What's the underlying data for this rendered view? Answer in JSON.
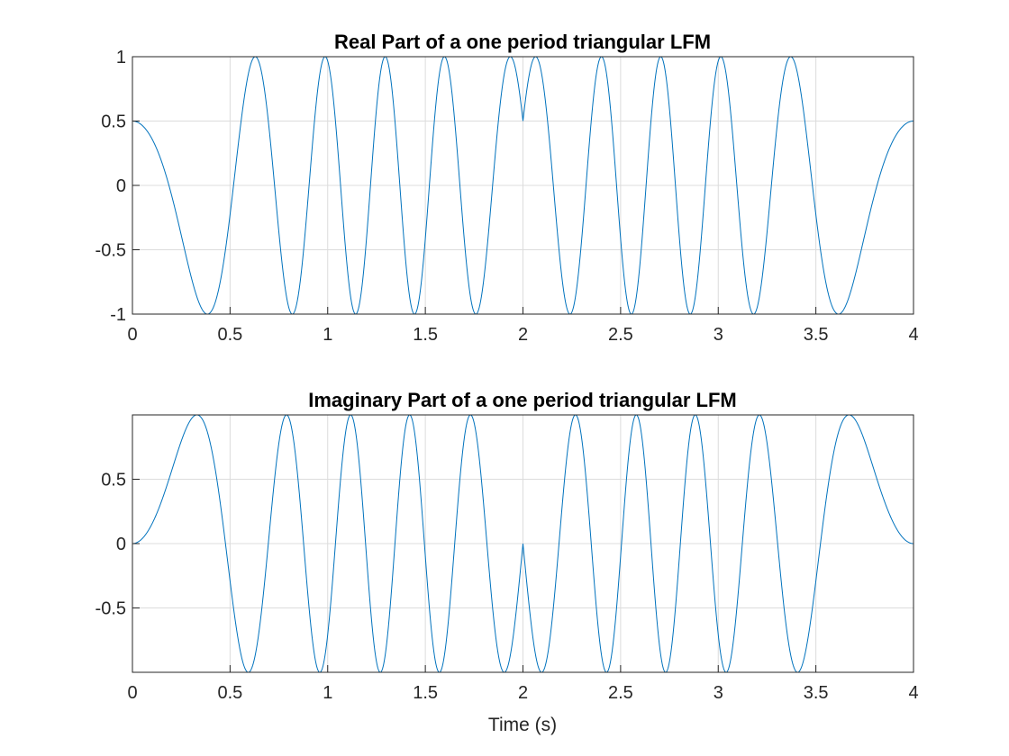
{
  "chart_data": [
    {
      "type": "line",
      "title": "Real Part of a one period triangular LFM",
      "xlabel": "",
      "ylabel": "",
      "xlim": [
        0,
        4
      ],
      "ylim": [
        -1,
        1
      ],
      "xticks": [
        0,
        0.5,
        1,
        1.5,
        2,
        2.5,
        3,
        3.5,
        4
      ],
      "xtick_labels": [
        "0",
        "0.5",
        "1",
        "1.5",
        "2",
        "2.5",
        "3",
        "3.5",
        "4"
      ],
      "yticks": [
        -1,
        -0.5,
        0,
        0.5,
        1
      ],
      "ytick_labels": [
        "-1",
        "-0.5",
        "0",
        "0.5",
        "1"
      ],
      "grid": true,
      "series": [
        {
          "part": "real",
          "function": "cos(2*pi*(2.5*t^2 - 0.625*t^3) + 1.047) for t in [0,2], mirrored for t in [2,4]",
          "x_range": [
            0,
            4
          ],
          "start_value": 0.5,
          "color": "#0072bd"
        }
      ]
    },
    {
      "type": "line",
      "title": "Imaginary Part of a one period triangular LFM",
      "xlabel": "Time (s)",
      "ylabel": "",
      "xlim": [
        0,
        4
      ],
      "ylim": [
        -1,
        1
      ],
      "xticks": [
        0,
        0.5,
        1,
        1.5,
        2,
        2.5,
        3,
        3.5,
        4
      ],
      "xtick_labels": [
        "0",
        "0.5",
        "1",
        "1.5",
        "2",
        "2.5",
        "3",
        "3.5",
        "4"
      ],
      "yticks": [
        -0.5,
        0,
        0.5
      ],
      "ytick_labels": [
        "-0.5",
        "0",
        "0.5"
      ],
      "grid": true,
      "series": [
        {
          "part": "imaginary",
          "function": "sin(2*pi*(2.5*t^2 - 0.625*t^3)) for t in [0,2], mirrored for t in [2,4]",
          "x_range": [
            0,
            4
          ],
          "start_value": 0,
          "color": "#0072bd"
        }
      ]
    }
  ]
}
